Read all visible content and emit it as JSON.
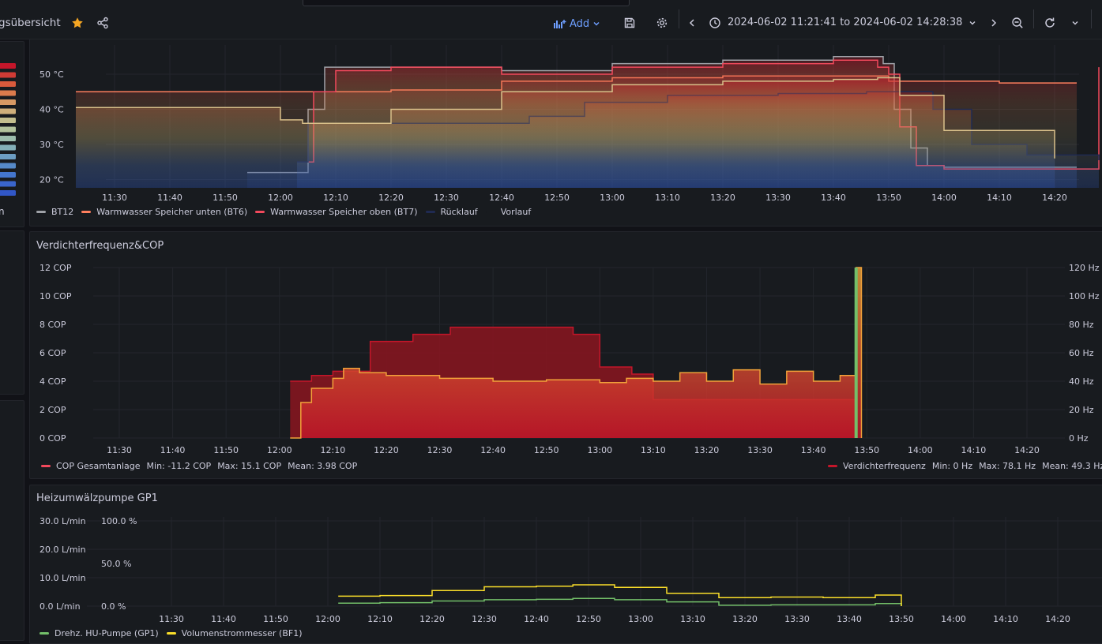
{
  "topbar": {
    "breadcrumb": "gsübersicht",
    "add_label": "Add",
    "time_range": "2024-06-02 11:21:41 to 2024-06-02 14:28:38",
    "icons": [
      "star-icon",
      "share-icon",
      "add-panel-icon",
      "chevron-down-icon",
      "save-icon",
      "gear-icon",
      "chevron-left-icon",
      "clock-icon",
      "chevron-right-icon",
      "zoom-out-icon",
      "refresh-icon"
    ]
  },
  "left_strip": {
    "label_fragment": "n",
    "colors": [
      "#c4162a",
      "#d03b35",
      "#d95a3c",
      "#dc7b4c",
      "#d79964",
      "#cfaf7b",
      "#c3be8e",
      "#b2c29c",
      "#9cbcac",
      "#84afb8",
      "#6c9dc2",
      "#568ac9",
      "#4476ce",
      "#3a65cc",
      "#3157c7"
    ]
  },
  "panels": {
    "temps": {
      "legend": [
        {
          "name": "BT12",
          "color": "#9fa2a8"
        },
        {
          "name": "Warmwasser Speicher unten (BT6)",
          "color": "#ff7f5e"
        },
        {
          "name": "Warmwasser Speicher oben (BT7)",
          "color": "#f2495c"
        },
        {
          "name": "Rücklauf",
          "color": "#1f2a52"
        },
        {
          "name": "Vorlauf",
          "color": "#181b1f"
        }
      ]
    },
    "cop": {
      "title": "Verdichterfrequenz&COP",
      "legend_left": {
        "name": "COP Gesamtanlage",
        "color": "#f2495c",
        "min": "Min: -11.2 COP",
        "max": "Max: 15.1 COP",
        "mean": "Mean: 3.98 COP"
      },
      "legend_right": {
        "name": "Verdichterfrequenz",
        "color": "#c4162a",
        "min": "Min: 0 Hz",
        "max": "Max: 78.1 Hz",
        "mean": "Mean: 49.3 Hz"
      }
    },
    "pump": {
      "title": "Heizumwälzpumpe GP1",
      "legend": [
        {
          "name": "Drehz. HU-Pumpe (GP1)",
          "color": "#73bf69"
        },
        {
          "name": "Volumenstrommesser (BF1)",
          "color": "#fade2a"
        }
      ]
    }
  },
  "chart_data": [
    {
      "type": "line",
      "title": "",
      "y_unit": "°C",
      "y_ticks": [
        "20 °C",
        "30 °C",
        "40 °C",
        "50 °C"
      ],
      "x_ticks": [
        "11:30",
        "11:40",
        "11:50",
        "12:00",
        "12:10",
        "12:20",
        "12:30",
        "12:40",
        "12:50",
        "13:00",
        "13:10",
        "13:20",
        "13:30",
        "13:40",
        "13:50",
        "14:00",
        "14:10",
        "14:20"
      ],
      "series": [
        {
          "name": "BT12",
          "color": "#9fa2a8",
          "x": [
            "11:54",
            "12:00",
            "12:03",
            "12:05",
            "12:08",
            "12:20",
            "12:40",
            "13:00",
            "13:20",
            "13:40",
            "13:49",
            "13:51",
            "13:54",
            "13:57",
            "14:00",
            "14:20",
            "14:24"
          ],
          "y": [
            22,
            22,
            22,
            40,
            52,
            52,
            51,
            53,
            54,
            55,
            53,
            40,
            29,
            24,
            23.5,
            23.5,
            23.5
          ]
        },
        {
          "name": "Warmwasser Speicher unten (BT6)",
          "color": "#ff7f5e",
          "x": [
            "11:23",
            "11:55",
            "12:02",
            "12:06",
            "12:10",
            "12:20",
            "12:40",
            "13:00",
            "13:20",
            "13:40",
            "13:48",
            "13:50",
            "14:00",
            "14:10",
            "14:20",
            "14:24"
          ],
          "y": [
            45,
            45,
            45,
            45,
            45,
            45.5,
            48,
            49,
            49.5,
            49.5,
            49.5,
            48,
            48,
            47.5,
            47.5,
            47.5
          ]
        },
        {
          "name": "Warmwasser Speicher oben (BT7)",
          "color": "#f2495c",
          "x": [
            "12:03",
            "12:06",
            "12:10",
            "12:20",
            "12:40",
            "13:00",
            "13:20",
            "13:40",
            "13:48",
            "13:50",
            "13:52",
            "13:55",
            "14:00",
            "14:20",
            "14:28"
          ],
          "y": [
            25,
            45,
            51,
            52,
            50,
            52,
            53,
            54,
            52,
            50,
            35,
            24,
            23,
            23,
            52
          ]
        },
        {
          "name": "Rücklauf",
          "color": "#1f2a52",
          "x": [
            "12:03",
            "12:05",
            "12:10",
            "12:30",
            "12:45",
            "12:55",
            "13:10",
            "13:30",
            "13:46",
            "13:50",
            "13:58",
            "14:05",
            "14:15",
            "14:28"
          ],
          "y": [
            25,
            36,
            36,
            36,
            38,
            42,
            44,
            44.5,
            45,
            45,
            40,
            30,
            27,
            25.5
          ]
        },
        {
          "name": "Vorlauf",
          "color": "#181b1f",
          "x": [
            "11:23",
            "11:50",
            "12:00",
            "12:04",
            "12:10",
            "12:20",
            "12:40",
            "13:00",
            "13:20",
            "13:40",
            "13:48",
            "13:52",
            "14:00",
            "14:20"
          ],
          "y": [
            40.5,
            40.5,
            37,
            36,
            36,
            40,
            45,
            47,
            48,
            48.5,
            49,
            44,
            34,
            26
          ]
        }
      ]
    },
    {
      "type": "area",
      "title": "Verdichterfrequenz&COP",
      "y_ticks_left": [
        "0 COP",
        "2 COP",
        "4 COP",
        "6 COP",
        "8 COP",
        "10 COP",
        "12 COP"
      ],
      "y_ticks_right": [
        "0 Hz",
        "20 Hz",
        "40 Hz",
        "60 Hz",
        "80 Hz",
        "100 Hz",
        "120 Hz"
      ],
      "x_ticks": [
        "11:30",
        "11:40",
        "11:50",
        "12:00",
        "12:10",
        "12:20",
        "12:30",
        "12:40",
        "12:50",
        "13:00",
        "13:10",
        "13:20",
        "13:30",
        "13:40",
        "13:50",
        "14:00",
        "14:10",
        "14:20"
      ],
      "series": [
        {
          "name": "Verdichterfrequenz",
          "axis": "right",
          "unit": "Hz",
          "x": [
            "12:02",
            "12:06",
            "12:10",
            "12:17",
            "12:25",
            "12:32",
            "12:40",
            "12:50",
            "12:55",
            "13:00",
            "13:06",
            "13:10",
            "13:20",
            "13:30",
            "13:40",
            "13:48"
          ],
          "y": [
            40,
            44,
            47,
            68,
            73,
            78,
            78,
            78,
            73,
            50,
            45,
            27,
            27,
            27,
            27,
            27
          ]
        },
        {
          "name": "COP Gesamtanlage",
          "axis": "left",
          "unit": "COP",
          "x": [
            "12:02",
            "12:04",
            "12:06",
            "12:10",
            "12:12",
            "12:15",
            "12:20",
            "12:30",
            "12:40",
            "12:50",
            "13:00",
            "13:05",
            "13:10",
            "13:15",
            "13:20",
            "13:25",
            "13:30",
            "13:35",
            "13:40",
            "13:45",
            "13:48",
            "13:49"
          ],
          "y": [
            0,
            2.5,
            3.5,
            4.2,
            4.9,
            4.6,
            4.4,
            4.2,
            4.0,
            4.1,
            3.9,
            4.2,
            4.0,
            4.6,
            4.0,
            4.8,
            3.8,
            4.7,
            4.0,
            4.4,
            15.1,
            0
          ]
        }
      ]
    },
    {
      "type": "line",
      "title": "Heizumwälzpumpe GP1",
      "y_ticks_left": [
        "0.0 L/min",
        "10.0 L/min",
        "20.0 L/min",
        "30.0 L/min"
      ],
      "y_ticks_right": [
        "0.0 %",
        "50.0 %",
        "100.0 %"
      ],
      "x_ticks": [
        "11:30",
        "11:40",
        "11:50",
        "12:00",
        "12:10",
        "12:20",
        "12:30",
        "12:40",
        "12:50",
        "13:00",
        "13:10",
        "13:20",
        "13:30",
        "13:40",
        "13:50",
        "14:00",
        "14:10",
        "14:20"
      ],
      "series": [
        {
          "name": "Drehz. HU-Pumpe (GP1)",
          "unit": "%",
          "x": [
            "12:02",
            "12:10",
            "12:20",
            "12:30",
            "12:40",
            "12:47",
            "12:55",
            "13:05",
            "13:15",
            "13:25",
            "13:35",
            "13:45",
            "13:50"
          ],
          "y": [
            3.5,
            4,
            6,
            7.5,
            8,
            9,
            7.5,
            5,
            1,
            1.5,
            1.5,
            3,
            2.5
          ]
        },
        {
          "name": "Volumenstrommesser (BF1)",
          "unit": "L/min",
          "x": [
            "12:02",
            "12:10",
            "12:20",
            "12:30",
            "12:40",
            "12:47",
            "12:55",
            "13:05",
            "13:15",
            "13:25",
            "13:35",
            "13:45",
            "13:50"
          ],
          "y": [
            3.5,
            3.7,
            5.5,
            6.8,
            7.0,
            7.5,
            6.6,
            4.5,
            3.0,
            3.2,
            3.0,
            3.9,
            3.3
          ]
        }
      ]
    }
  ]
}
